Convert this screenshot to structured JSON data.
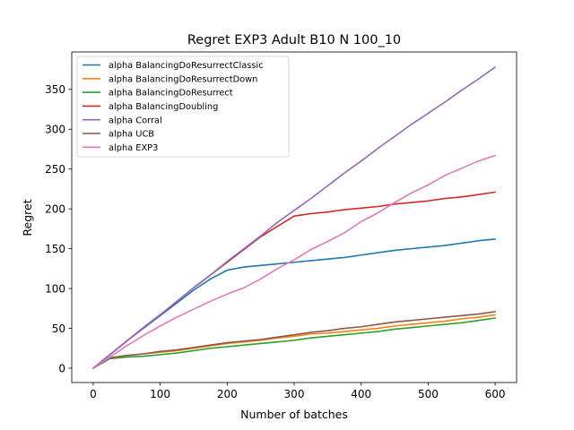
{
  "chart_data": {
    "type": "line",
    "title": "Regret EXP3 Adult B10 N 100_10",
    "xlabel": "Number of batches",
    "ylabel": "Regret",
    "xlim": [
      -32,
      632
    ],
    "ylim": [
      -18,
      397
    ],
    "xticks": [
      0,
      100,
      200,
      300,
      400,
      500,
      600
    ],
    "yticks": [
      0,
      50,
      100,
      150,
      200,
      250,
      300,
      350
    ],
    "grid": false,
    "legend_position": "top-left",
    "x": [
      0,
      25,
      50,
      75,
      100,
      125,
      150,
      175,
      200,
      225,
      250,
      275,
      300,
      325,
      350,
      375,
      400,
      425,
      450,
      475,
      500,
      525,
      550,
      575,
      600
    ],
    "series": [
      {
        "name": "alpha BalancingDoResurrectClassic",
        "color": "#1f77b4",
        "values": [
          0,
          17,
          34,
          50,
          66,
          82,
          98,
          112,
          123,
          127,
          129,
          131,
          133,
          135,
          137,
          139,
          142,
          145,
          148,
          150,
          152,
          154,
          157,
          160,
          162
        ]
      },
      {
        "name": "alpha BalancingDoResurrectDown",
        "color": "#ff7f0e",
        "values": [
          0,
          13,
          16,
          18,
          20,
          22,
          25,
          28,
          31,
          33,
          35,
          38,
          40,
          43,
          44,
          46,
          48,
          50,
          53,
          55,
          57,
          59,
          62,
          64,
          67
        ]
      },
      {
        "name": "alpha BalancingDoResurrect",
        "color": "#2ca02c",
        "values": [
          0,
          12,
          14,
          15,
          17,
          19,
          22,
          25,
          27,
          29,
          31,
          33,
          35,
          38,
          40,
          42,
          44,
          46,
          49,
          51,
          53,
          55,
          57,
          60,
          63
        ]
      },
      {
        "name": "alpha BalancingDoubling",
        "color": "#d62728",
        "values": [
          0,
          17,
          34,
          51,
          67,
          84,
          101,
          117,
          133,
          149,
          165,
          178,
          191,
          194,
          196,
          199,
          201,
          203,
          206,
          208,
          210,
          213,
          215,
          218,
          221
        ]
      },
      {
        "name": "alpha Corral",
        "color": "#9467bd",
        "values": [
          0,
          17,
          34,
          51,
          67,
          84,
          101,
          117,
          134,
          150,
          166,
          183,
          198,
          213,
          229,
          245,
          260,
          276,
          291,
          306,
          320,
          334,
          349,
          363,
          378
        ]
      },
      {
        "name": "alpha UCB",
        "color": "#8c564b",
        "values": [
          0,
          13,
          16,
          18,
          21,
          23,
          26,
          29,
          32,
          34,
          36,
          39,
          42,
          45,
          47,
          50,
          52,
          55,
          58,
          60,
          62,
          64,
          66,
          68,
          71
        ]
      },
      {
        "name": "alpha EXP3",
        "color": "#e377c2",
        "values": [
          0,
          14,
          28,
          41,
          53,
          64,
          74,
          84,
          93,
          101,
          112,
          125,
          136,
          149,
          159,
          170,
          184,
          195,
          208,
          220,
          230,
          242,
          251,
          260,
          267
        ]
      }
    ]
  }
}
